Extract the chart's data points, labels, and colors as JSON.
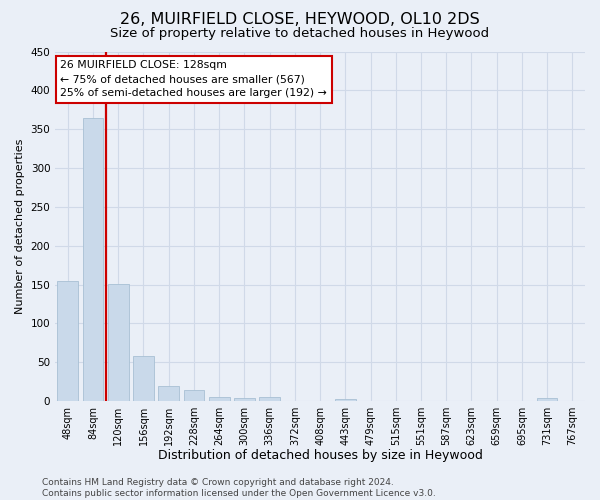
{
  "title": "26, MUIRFIELD CLOSE, HEYWOOD, OL10 2DS",
  "subtitle": "Size of property relative to detached houses in Heywood",
  "xlabel": "Distribution of detached houses by size in Heywood",
  "ylabel": "Number of detached properties",
  "bar_labels": [
    "48sqm",
    "84sqm",
    "120sqm",
    "156sqm",
    "192sqm",
    "228sqm",
    "264sqm",
    "300sqm",
    "336sqm",
    "372sqm",
    "408sqm",
    "443sqm",
    "479sqm",
    "515sqm",
    "551sqm",
    "587sqm",
    "623sqm",
    "659sqm",
    "695sqm",
    "731sqm",
    "767sqm"
  ],
  "bar_values": [
    155,
    365,
    151,
    58,
    20,
    14,
    5,
    4,
    5,
    0,
    0,
    3,
    0,
    0,
    0,
    0,
    0,
    0,
    0,
    4,
    0
  ],
  "bar_color": "#c9d9ea",
  "bar_edge_color": "#a8c0d4",
  "grid_color": "#d0d9e8",
  "background_color": "#eaeff7",
  "vline_color": "#cc0000",
  "vline_x": 1.5,
  "annotation_text": "26 MUIRFIELD CLOSE: 128sqm\n← 75% of detached houses are smaller (567)\n25% of semi-detached houses are larger (192) →",
  "annotation_box_color": "#ffffff",
  "annotation_box_edge_color": "#cc0000",
  "ylim": [
    0,
    450
  ],
  "yticks": [
    0,
    50,
    100,
    150,
    200,
    250,
    300,
    350,
    400,
    450
  ],
  "footer_text": "Contains HM Land Registry data © Crown copyright and database right 2024.\nContains public sector information licensed under the Open Government Licence v3.0.",
  "title_fontsize": 11.5,
  "subtitle_fontsize": 9.5,
  "xlabel_fontsize": 9,
  "ylabel_fontsize": 8,
  "tick_fontsize": 7,
  "annot_fontsize": 7.8,
  "footer_fontsize": 6.5
}
